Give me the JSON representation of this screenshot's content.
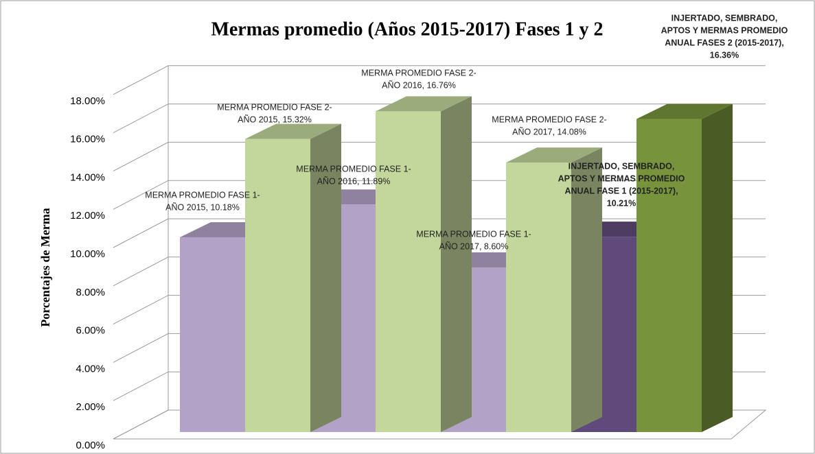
{
  "chart_data": {
    "type": "bar3d",
    "title": "Mermas promedio (Años 2015-2017) Fases 1 y 2",
    "y_label": "Porcentajes de Merma",
    "values": [
      10.18,
      15.32,
      11.89,
      16.76,
      8.6,
      14.08,
      10.21,
      16.36
    ],
    "colors": [
      "#b3a2c7",
      "#c3d69b",
      "#b3a2c7",
      "#c3d69b",
      "#b3a2c7",
      "#c3d69b",
      "#604a7b",
      "#77933c"
    ],
    "value_labels": [
      [
        "MERMA PROMEDIO FASE 1-",
        "AÑO 2015, 10.18%"
      ],
      [
        "MERMA PROMEDIO FASE 2-",
        "AÑO 2015, 15.32%"
      ],
      [
        "MERMA PROMEDIO FASE 1-",
        "AÑO 2016, 11.89%"
      ],
      [
        "MERMA PROMEDIO FASE 2-",
        "AÑO 2016, 16.76%"
      ],
      [
        "MERMA PROMEDIO FASE 1-",
        "AÑO 2017, 8.60%"
      ],
      [
        "MERMA PROMEDIO FASE 2-",
        "AÑO 2017, 14.08%"
      ],
      [
        "INJERTADO, SEMBRADO,",
        "APTOS Y MERMAS PROMEDIO",
        "ANUAL FASE 1 (2015-2017),",
        "10.21%"
      ],
      [
        "INJERTADO, SEMBRADO,",
        "APTOS Y MERMAS PROMEDIO",
        "ANUAL FASES 2  (2015-2017),",
        "16.36%"
      ]
    ],
    "ylim": [
      0,
      18
    ],
    "yticks": [
      {
        "value": 0,
        "label": "0.00%"
      },
      {
        "value": 2,
        "label": "2.00%"
      },
      {
        "value": 4,
        "label": "4.00%"
      },
      {
        "value": 6,
        "label": "6.00%"
      },
      {
        "value": 8,
        "label": "8.00%"
      },
      {
        "value": 10,
        "label": "10.00%"
      },
      {
        "value": 12,
        "label": "12.00%"
      },
      {
        "value": 14,
        "label": "14.00%"
      },
      {
        "value": 16,
        "label": "16.00%"
      },
      {
        "value": 18,
        "label": "18.00%"
      }
    ],
    "grid": true
  }
}
